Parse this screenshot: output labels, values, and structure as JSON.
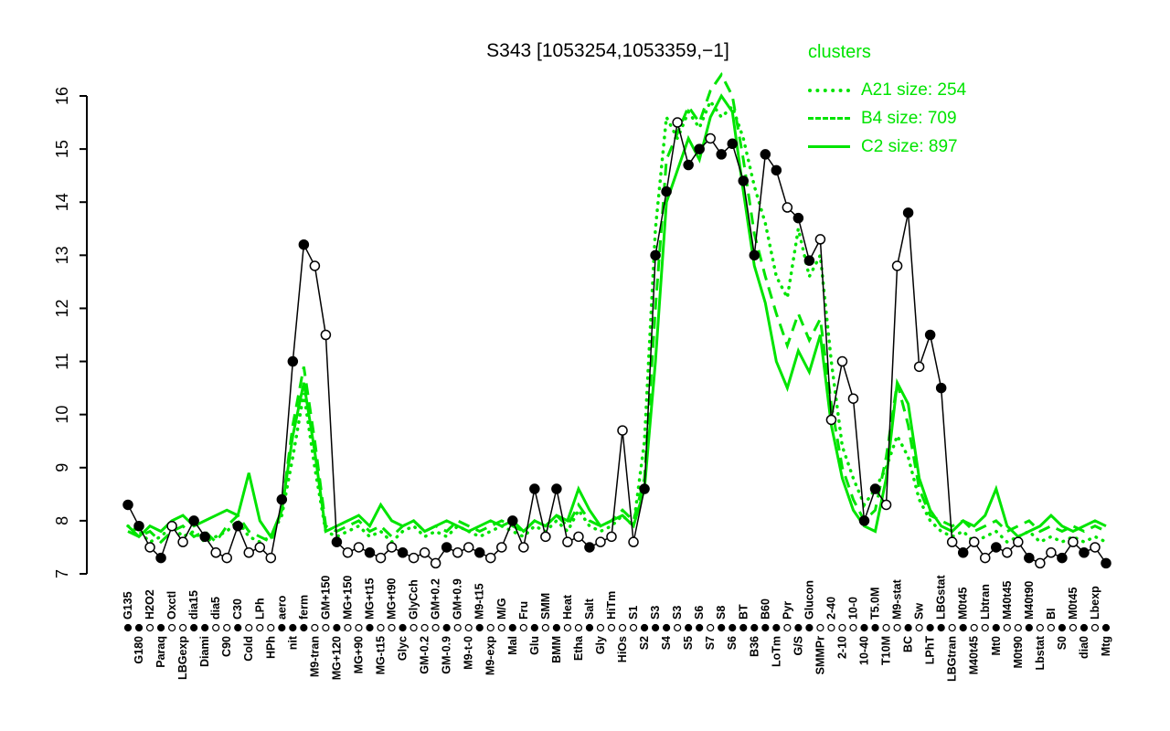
{
  "title": "S343 [1053254,1053359,−1]",
  "legend": {
    "title": "clusters",
    "items": [
      {
        "label": "A21 size: 254",
        "style": "dotted"
      },
      {
        "label": "B4 size: 709",
        "style": "dashed"
      },
      {
        "label": "C2 size: 897",
        "style": "solid"
      }
    ]
  },
  "colors": {
    "cluster": "#00E400",
    "profile": "#000000",
    "background": "#ffffff"
  },
  "chart_data": {
    "type": "line",
    "title": "S343 [1053254,1053359,−1]",
    "xlabel": "",
    "ylabel": "",
    "ylim": [
      7,
      16
    ],
    "yticks": [
      7,
      8,
      9,
      10,
      11,
      12,
      13,
      14,
      15,
      16
    ],
    "grid": false,
    "legend_position": "top-right",
    "categories": [
      "G135",
      "G180",
      "H2O2",
      "Paraq",
      "Oxctl",
      "LBGexp",
      "dia15",
      "Diami",
      "dia5",
      "C90",
      "C30",
      "Cold",
      "LPh",
      "HPh",
      "aero",
      "nit",
      "ferm",
      "M9-tran",
      "GM+150",
      "MG+120",
      "MG+150",
      "MG+90",
      "MG+t15",
      "MG-t15",
      "MG+t90",
      "Glyc",
      "GlyCch",
      "GM-0.2",
      "GM+0.2",
      "GM-0.9",
      "GM+0.9",
      "M9-t-0",
      "M9-t15",
      "M9-exp",
      "M/G",
      "Mal",
      "Fru",
      "Glu",
      "SMM",
      "BMM",
      "Heat",
      "Etha",
      "Salt",
      "Gly",
      "HiTm",
      "HiOs",
      "S1",
      "S2",
      "S3",
      "S4",
      "S3",
      "S5",
      "S6",
      "S7",
      "S8",
      "S6",
      "BT",
      "B36",
      "B60",
      "LoTm",
      "Pyr",
      "G/S",
      "Glucon",
      "SMMPr",
      "2-40",
      "2-10",
      "10-0",
      "10-40",
      "T5.0M",
      "T10M",
      "M9-stat",
      "BC",
      "Sw",
      "LPhT",
      "LBGstat",
      "LBGtran",
      "M0t45",
      "M40t45",
      "Lbtran",
      "Mt0",
      "M40t45",
      "M0t90",
      "M40t90",
      "Lbstat",
      "BI",
      "S0",
      "M0t45",
      "dia0",
      "Lbexp",
      "Mtg"
    ],
    "marker_filled": [
      1,
      1,
      0,
      1,
      0,
      0,
      1,
      1,
      0,
      0,
      1,
      0,
      0,
      0,
      1,
      1,
      1,
      0,
      0,
      1,
      0,
      0,
      1,
      0,
      0,
      1,
      0,
      0,
      0,
      1,
      0,
      0,
      1,
      0,
      0,
      1,
      0,
      1,
      0,
      1,
      0,
      0,
      1,
      0,
      0,
      0,
      0,
      1,
      1,
      1,
      0,
      1,
      1,
      0,
      1,
      1,
      1,
      1,
      1,
      1,
      0,
      1,
      1,
      0,
      0,
      0,
      0,
      1,
      1,
      0,
      0,
      1,
      0,
      1,
      1,
      0,
      1,
      0,
      0,
      1,
      0,
      0,
      1,
      0,
      0,
      1,
      0,
      1,
      0,
      1
    ],
    "series": [
      {
        "name": "profile",
        "color": "#000000",
        "style": "solid-points",
        "values": [
          8.3,
          7.9,
          7.5,
          7.3,
          7.9,
          7.6,
          8.0,
          7.7,
          7.4,
          7.3,
          7.9,
          7.4,
          7.5,
          7.3,
          8.4,
          11.0,
          13.2,
          12.8,
          11.5,
          7.6,
          7.4,
          7.5,
          7.4,
          7.3,
          7.5,
          7.4,
          7.3,
          7.4,
          7.2,
          7.5,
          7.4,
          7.5,
          7.4,
          7.3,
          7.5,
          8.0,
          7.5,
          8.6,
          7.7,
          8.6,
          7.6,
          7.7,
          7.5,
          7.6,
          7.7,
          9.7,
          7.6,
          8.6,
          13.0,
          14.2,
          15.5,
          14.7,
          15.0,
          15.2,
          14.9,
          15.1,
          14.4,
          13.0,
          14.9,
          14.6,
          13.9,
          13.7,
          12.9,
          13.3,
          9.9,
          11.0,
          10.3,
          8.0,
          8.6,
          8.3,
          12.8,
          13.8,
          10.9,
          11.5,
          10.5,
          7.6,
          7.4,
          7.6,
          7.3,
          7.5,
          7.4,
          7.6,
          7.3,
          7.2,
          7.4,
          7.3,
          7.6,
          7.4,
          7.5,
          7.2
        ]
      },
      {
        "name": "A21",
        "size": 254,
        "style": "dotted",
        "values": [
          7.9,
          7.8,
          7.6,
          7.7,
          7.9,
          7.7,
          7.8,
          7.6,
          7.7,
          7.8,
          8.0,
          7.7,
          7.6,
          7.7,
          8.1,
          9.2,
          10.4,
          9.0,
          7.8,
          7.7,
          7.8,
          7.9,
          7.7,
          7.8,
          7.6,
          7.8,
          7.9,
          7.7,
          7.8,
          7.7,
          7.9,
          7.8,
          7.7,
          7.8,
          7.9,
          7.8,
          7.7,
          7.9,
          7.8,
          8.0,
          7.8,
          8.2,
          7.9,
          7.8,
          7.9,
          8.1,
          7.9,
          9.5,
          13.5,
          15.6,
          15.2,
          15.7,
          15.4,
          15.9,
          15.6,
          15.8,
          15.2,
          14.3,
          13.6,
          12.6,
          12.2,
          13.5,
          12.6,
          13.0,
          11.0,
          9.4,
          8.8,
          8.3,
          8.6,
          9.0,
          9.6,
          9.2,
          8.4,
          8.0,
          7.8,
          7.7,
          7.8,
          7.6,
          7.7,
          7.8,
          7.6,
          7.7,
          7.8,
          7.6,
          7.7,
          7.6,
          7.7,
          7.6,
          7.7,
          7.6
        ]
      },
      {
        "name": "B4",
        "size": 709,
        "style": "dashed",
        "values": [
          7.8,
          7.7,
          7.8,
          7.6,
          7.8,
          7.9,
          7.7,
          7.8,
          7.6,
          7.9,
          8.1,
          7.8,
          7.7,
          7.6,
          8.2,
          9.8,
          10.9,
          9.5,
          7.9,
          7.8,
          7.9,
          8.0,
          7.8,
          7.9,
          7.7,
          7.9,
          8.0,
          7.8,
          7.9,
          7.8,
          8.0,
          7.9,
          7.8,
          7.9,
          8.0,
          7.9,
          7.8,
          8.0,
          7.9,
          8.1,
          7.9,
          8.3,
          8.0,
          7.9,
          8.0,
          8.2,
          8.0,
          8.8,
          12.0,
          14.8,
          15.3,
          15.8,
          15.5,
          16.1,
          16.4,
          16.0,
          14.8,
          13.4,
          12.6,
          11.9,
          11.3,
          11.9,
          11.4,
          11.8,
          10.2,
          9.0,
          8.4,
          8.0,
          8.2,
          9.2,
          10.6,
          9.8,
          8.6,
          8.1,
          8.0,
          7.9,
          8.0,
          7.8,
          7.9,
          8.0,
          7.8,
          7.9,
          8.0,
          7.8,
          7.9,
          7.8,
          7.9,
          7.8,
          7.9,
          7.8
        ]
      },
      {
        "name": "C2",
        "size": 897,
        "style": "solid",
        "values": [
          7.9,
          7.7,
          7.9,
          7.8,
          8.0,
          8.1,
          7.9,
          8.0,
          8.1,
          8.2,
          8.1,
          8.9,
          8.0,
          7.7,
          8.2,
          9.6,
          10.6,
          9.3,
          7.8,
          7.9,
          8.0,
          8.1,
          7.9,
          8.3,
          8.0,
          7.9,
          8.0,
          7.8,
          7.9,
          8.0,
          7.9,
          7.8,
          7.9,
          8.0,
          7.9,
          8.0,
          7.8,
          8.0,
          7.9,
          8.1,
          8.0,
          8.6,
          8.2,
          7.9,
          8.0,
          8.1,
          7.9,
          8.6,
          11.0,
          14.0,
          14.6,
          15.2,
          14.8,
          15.6,
          16.0,
          15.7,
          14.2,
          12.8,
          12.1,
          11.0,
          10.5,
          11.2,
          10.8,
          11.5,
          9.8,
          8.8,
          8.2,
          7.9,
          7.8,
          8.8,
          10.6,
          10.2,
          8.8,
          8.2,
          7.9,
          7.8,
          8.0,
          7.9,
          8.1,
          8.6,
          7.9,
          7.7,
          7.8,
          7.9,
          8.1,
          7.9,
          7.8,
          7.9,
          8.0,
          7.9
        ]
      }
    ]
  }
}
